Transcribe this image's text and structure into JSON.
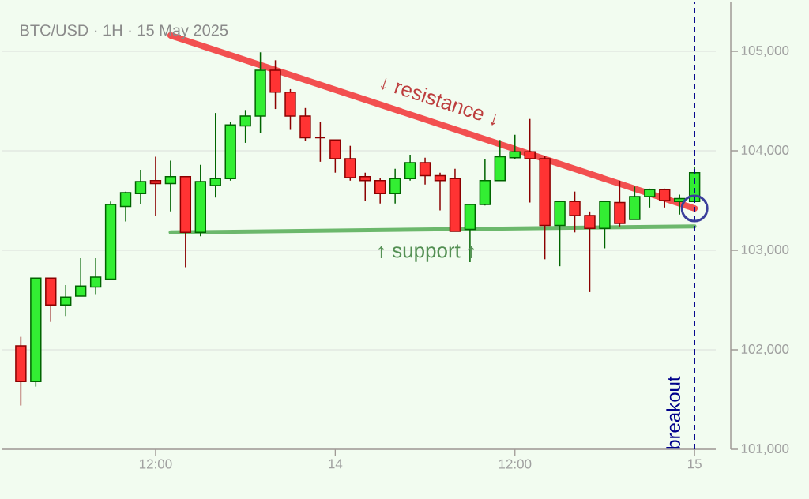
{
  "chart_data": {
    "type": "candlestick",
    "title": "BTC/USD · 1H · 15 May 2025",
    "x": [
      "2025-05-13T03:00",
      "2025-05-13T04:00",
      "2025-05-13T05:00",
      "2025-05-13T06:00",
      "2025-05-13T07:00",
      "2025-05-13T08:00",
      "2025-05-13T09:00",
      "2025-05-13T10:00",
      "2025-05-13T11:00",
      "2025-05-13T12:00",
      "2025-05-13T13:00",
      "2025-05-13T14:00",
      "2025-05-13T15:00",
      "2025-05-13T16:00",
      "2025-05-13T17:00",
      "2025-05-13T18:00",
      "2025-05-13T19:00",
      "2025-05-13T20:00",
      "2025-05-13T21:00",
      "2025-05-13T22:00",
      "2025-05-13T23:00",
      "2025-05-14T00:00",
      "2025-05-14T01:00",
      "2025-05-14T02:00",
      "2025-05-14T03:00",
      "2025-05-14T04:00",
      "2025-05-14T05:00",
      "2025-05-14T06:00",
      "2025-05-14T07:00",
      "2025-05-14T08:00",
      "2025-05-14T09:00",
      "2025-05-14T10:00",
      "2025-05-14T11:00",
      "2025-05-14T12:00",
      "2025-05-14T13:00",
      "2025-05-14T14:00",
      "2025-05-14T15:00",
      "2025-05-14T16:00",
      "2025-05-14T17:00",
      "2025-05-14T18:00",
      "2025-05-14T19:00",
      "2025-05-14T20:00",
      "2025-05-14T21:00",
      "2025-05-14T22:00",
      "2025-05-14T23:00",
      "2025-05-15T00:00"
    ],
    "ohlc": [
      [
        102040,
        102130,
        101440,
        101680
      ],
      [
        101680,
        102720,
        101630,
        102720
      ],
      [
        102720,
        102720,
        102280,
        102450
      ],
      [
        102450,
        102650,
        102340,
        102530
      ],
      [
        102540,
        102920,
        102540,
        102640
      ],
      [
        102630,
        102920,
        102560,
        102730
      ],
      [
        102710,
        103490,
        102710,
        103460
      ],
      [
        103440,
        103590,
        103290,
        103580
      ],
      [
        103570,
        103810,
        103460,
        103690
      ],
      [
        103700,
        103940,
        103350,
        103670
      ],
      [
        103670,
        103900,
        103390,
        103740
      ],
      [
        103740,
        103740,
        102830,
        103180
      ],
      [
        103180,
        103860,
        103140,
        103690
      ],
      [
        103650,
        104380,
        103530,
        103720
      ],
      [
        103720,
        104290,
        103700,
        104260
      ],
      [
        104250,
        104410,
        104080,
        104350
      ],
      [
        104350,
        104990,
        104180,
        104810
      ],
      [
        104810,
        104910,
        104420,
        104590
      ],
      [
        104590,
        104620,
        104210,
        104350
      ],
      [
        104350,
        104430,
        104100,
        104130
      ],
      [
        104130,
        104290,
        103890,
        104130
      ],
      [
        104110,
        104110,
        103780,
        103920
      ],
      [
        103920,
        104050,
        103700,
        103730
      ],
      [
        103740,
        103780,
        103500,
        103700
      ],
      [
        103700,
        103730,
        103470,
        103570
      ],
      [
        103570,
        103820,
        103470,
        103720
      ],
      [
        103720,
        103960,
        103700,
        103880
      ],
      [
        103880,
        103930,
        103660,
        103750
      ],
      [
        103750,
        103780,
        103400,
        103700
      ],
      [
        103720,
        103820,
        103190,
        103190
      ],
      [
        103210,
        103460,
        102880,
        103460
      ],
      [
        103460,
        103920,
        103450,
        103700
      ],
      [
        103700,
        104110,
        103700,
        103940
      ],
      [
        103930,
        104160,
        103920,
        103990
      ],
      [
        103990,
        104320,
        103480,
        103920
      ],
      [
        103920,
        103950,
        102910,
        103250
      ],
      [
        103250,
        103500,
        102840,
        103490
      ],
      [
        103490,
        103590,
        103180,
        103350
      ],
      [
        103350,
        103390,
        102580,
        103220
      ],
      [
        103220,
        103490,
        103020,
        103490
      ],
      [
        103480,
        103700,
        103240,
        103270
      ],
      [
        103310,
        103640,
        103310,
        103540
      ],
      [
        103540,
        103620,
        103430,
        103610
      ],
      [
        103610,
        103620,
        103430,
        103500
      ],
      [
        103490,
        103560,
        103360,
        103520
      ],
      [
        103490,
        103840,
        103490,
        103780
      ]
    ],
    "series": [
      {
        "type": "line",
        "color": "#f25050",
        "x": [
          "2025-05-13T13:00",
          "2025-05-15T00:00"
        ],
        "values": [
          105160,
          103420
        ]
      },
      {
        "type": "line",
        "color": "#6cb86c",
        "x": [
          "2025-05-13T13:00",
          "2025-05-15T00:00"
        ],
        "values": [
          103180,
          103240
        ]
      },
      {
        "type": "scatter",
        "color": "#3b3f9b",
        "marker": "circle",
        "x": [
          "2025-05-15T00:00"
        ],
        "values": [
          103420
        ]
      }
    ],
    "annotations": [
      "↓ resistance ↓",
      "↑ support ↑"
    ],
    "ref_lines": [
      {
        "axis": "x",
        "value": "2025-05-15T00:00",
        "label": "breakout",
        "color": "#00008b",
        "line_style": "dashed"
      }
    ],
    "xlim": [
      "2025-05-13T01:46",
      "2025-05-15T01:25"
    ],
    "xticks": [
      {
        "value": "2025-05-13T12:00",
        "label": "12:00"
      },
      {
        "value": "2025-05-14T00:00",
        "label": "14"
      },
      {
        "value": "2025-05-14T12:00",
        "label": "12:00"
      },
      {
        "value": "2025-05-15T00:00",
        "label": "15"
      }
    ],
    "ylim": [
      101000,
      105500
    ],
    "yticks": [
      {
        "value": 101000,
        "label": "101,000"
      },
      {
        "value": 102000,
        "label": "102,000"
      },
      {
        "value": 103000,
        "label": "103,000"
      },
      {
        "value": 104000,
        "label": "104,000"
      },
      {
        "value": 105000,
        "label": "105,000"
      }
    ],
    "grid": "y"
  }
}
